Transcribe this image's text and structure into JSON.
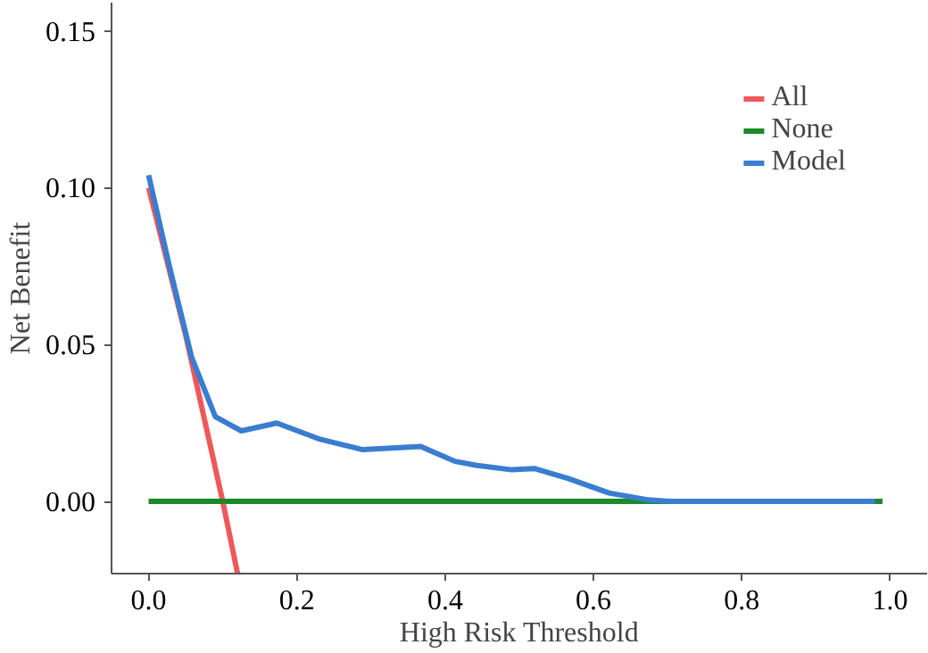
{
  "chart_data": {
    "type": "line",
    "xlabel": "High Risk Threshold",
    "ylabel": "Net Benefit",
    "xlim": [
      -0.05,
      1.05
    ],
    "ylim": [
      -0.023,
      0.159
    ],
    "xticks": [
      {
        "value": 0,
        "label": "0.0"
      },
      0.2,
      0.4,
      0.6,
      0.8,
      {
        "value": 1,
        "label": "1.0"
      }
    ],
    "yticks": [
      {
        "value": 0,
        "label": "0.00"
      },
      0.05,
      {
        "value": 0.1,
        "label": "0.10"
      },
      0.15
    ],
    "grid": false,
    "legend": "top right",
    "marker": "none",
    "line_style": "solid",
    "series": [
      {
        "name": "All",
        "color": "#f0575a",
        "x": [
          0,
          0.05,
          0.1,
          0.12
        ],
        "values": [
          0.1,
          0.053,
          0,
          -0.023
        ]
      },
      {
        "name": "None",
        "color": "#1a8a2a",
        "x": [
          0,
          0.99
        ],
        "values": [
          0,
          0
        ]
      },
      {
        "name": "Model",
        "color": "#3a7dd0",
        "x": [
          0,
          0.028,
          0.058,
          0.09,
          0.125,
          0.173,
          0.229,
          0.289,
          0.367,
          0.413,
          0.443,
          0.49,
          0.52,
          0.566,
          0.621,
          0.674,
          0.704,
          0.98
        ],
        "values": [
          0.104,
          0.075,
          0.046,
          0.027,
          0.0225,
          0.025,
          0.02,
          0.0165,
          0.0175,
          0.0128,
          0.0115,
          0.0101,
          0.0105,
          0.0073,
          0.0027,
          0.0005,
          0,
          0
        ]
      }
    ]
  }
}
